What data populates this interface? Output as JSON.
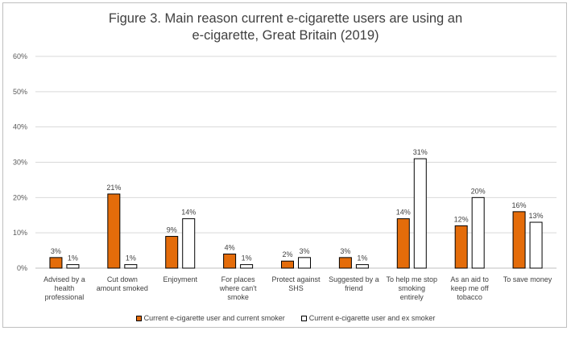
{
  "chart_data": {
    "type": "bar",
    "title": "Figure 3. Main reason current e-cigarette users are using an\ne-cigarette, Great Britain (2019)",
    "categories": [
      "Advised by a health professional",
      "Cut down amount smoked",
      "Enjoyment",
      "For places where can't smoke",
      "Protect against SHS",
      "Suggested by a friend",
      "To help me stop smoking entirely",
      "As an aid to keep me off tobacco",
      "To save money"
    ],
    "category_lines": [
      [
        "Advised by a",
        "health",
        "professional"
      ],
      [
        "Cut down",
        "amount smoked"
      ],
      [
        "Enjoyment"
      ],
      [
        "For places",
        "where can't",
        "smoke"
      ],
      [
        "Protect against",
        "SHS"
      ],
      [
        "Suggested by a",
        "friend"
      ],
      [
        "To help me stop",
        "smoking",
        "entirely"
      ],
      [
        "As an aid to",
        "keep me off",
        "tobacco"
      ],
      [
        "To save money"
      ]
    ],
    "series": [
      {
        "name": "Current e-cigarette user and current smoker",
        "values": [
          3,
          21,
          9,
          4,
          2,
          3,
          14,
          12,
          16
        ],
        "color": "#e46c0a"
      },
      {
        "name": "Current e-cigarette user and ex smoker",
        "values": [
          1,
          1,
          14,
          1,
          3,
          1,
          31,
          20,
          13
        ],
        "color": "#ffffff"
      }
    ],
    "data_labels": [
      [
        "3%",
        "21%",
        "9%",
        "4%",
        "2%",
        "3%",
        "14%",
        "12%",
        "16%"
      ],
      [
        "1%",
        "1%",
        "14%",
        "1%",
        "3%",
        "1%",
        "31%",
        "20%",
        "13%"
      ]
    ],
    "ylim": [
      0,
      60
    ],
    "yticks": [
      "0%",
      "10%",
      "20%",
      "30%",
      "40%",
      "50%",
      "60%"
    ],
    "xlabel": "",
    "ylabel": "",
    "grid": "horizontal",
    "legend_position": "bottom"
  }
}
